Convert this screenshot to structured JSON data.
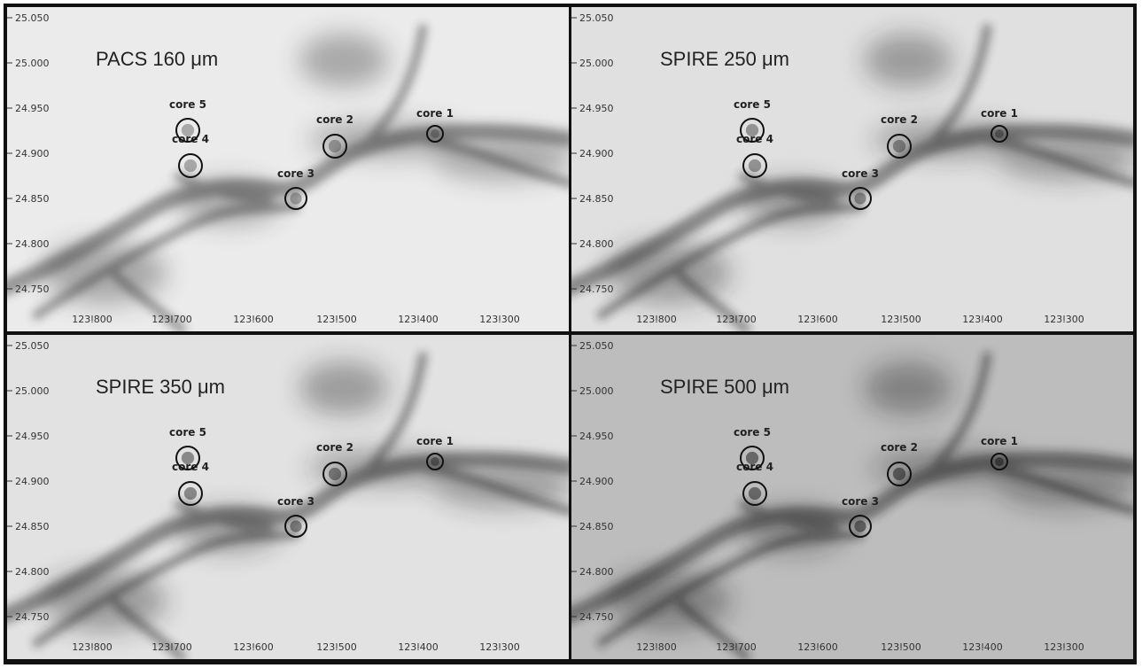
{
  "y_ticks": [
    "25.050",
    "25.000",
    "24.950",
    "24.900",
    "24.850",
    "24.800",
    "24.750"
  ],
  "x_ticks": [
    "123.800",
    "123.700",
    "123.600",
    "123.500",
    "123.400",
    "123.300"
  ],
  "cores": [
    "core 1",
    "core 2",
    "core 3",
    "core 4",
    "core 5"
  ],
  "panels": [
    {
      "band": "PACS 160 μm",
      "bg": "#ebebeb",
      "cloud": "#2e2e2e"
    },
    {
      "band": "SPIRE 250 μm",
      "bg": "#e0e0e0",
      "cloud": "#1e1e1e"
    },
    {
      "band": "SPIRE 350 μm",
      "bg": "#e2e2e2",
      "cloud": "#1c1c1c"
    },
    {
      "band": "SPIRE 500 μm",
      "bg": "#bdbdbd",
      "cloud": "#141414"
    }
  ]
}
